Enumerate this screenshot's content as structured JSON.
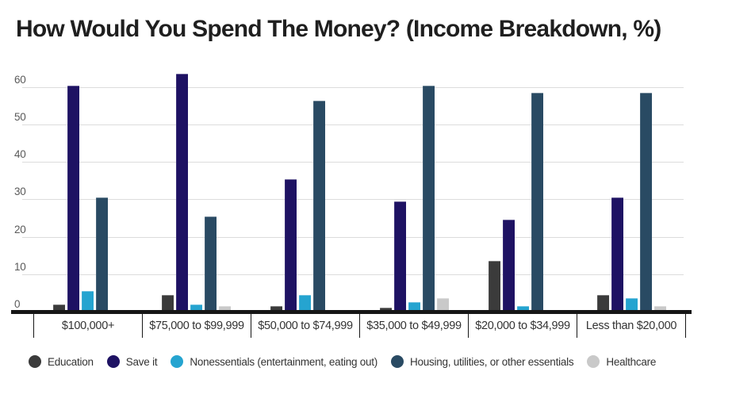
{
  "title": "How Would You Spend The Money? (Income Breakdown, %)",
  "chart_data": {
    "type": "bar",
    "title": "How Would You Spend The Money? (Income Breakdown, %)",
    "categories": [
      "$100,000+",
      "$75,000 to $99,999",
      "$50,000 to $74,999",
      "$35,000 to $49,999",
      "$20,000 to $34,999",
      "Less than $20,000"
    ],
    "series": [
      {
        "name": "Education",
        "color": "#3b3b3b",
        "values": [
          2,
          4.5,
          1.5,
          1,
          13.5,
          4.5
        ]
      },
      {
        "name": "Save it",
        "color": "#1e1263",
        "values": [
          60.5,
          63.5,
          35.5,
          29.5,
          24.5,
          30.5
        ]
      },
      {
        "name": "Nonessentials (entertainment, eating out)",
        "color": "#25a4d0",
        "values": [
          5.5,
          2,
          4.5,
          2.5,
          1.5,
          3.5
        ]
      },
      {
        "name": "Housing, utilities, or other essentials",
        "color": "#294a63",
        "values": [
          30.5,
          25.5,
          56.5,
          60.5,
          58.5,
          58.5
        ]
      },
      {
        "name": "Healthcare",
        "color": "#c9c9c9",
        "values": [
          0,
          1.5,
          0,
          3.5,
          0,
          1.5
        ]
      }
    ],
    "xlabel": "",
    "ylabel": "",
    "y_ticks": [
      0,
      10,
      20,
      30,
      40,
      50,
      60
    ],
    "ylim": [
      0,
      65
    ],
    "grid": true,
    "legend_position": "bottom"
  },
  "colors": {
    "background": "#ffffff",
    "title_text": "#1f1f1f",
    "axis_line": "#161616",
    "gridline": "#dcdcdc",
    "y_tick_label": "#5a5a5a",
    "category_label": "#333333",
    "legend_label": "#333333"
  }
}
